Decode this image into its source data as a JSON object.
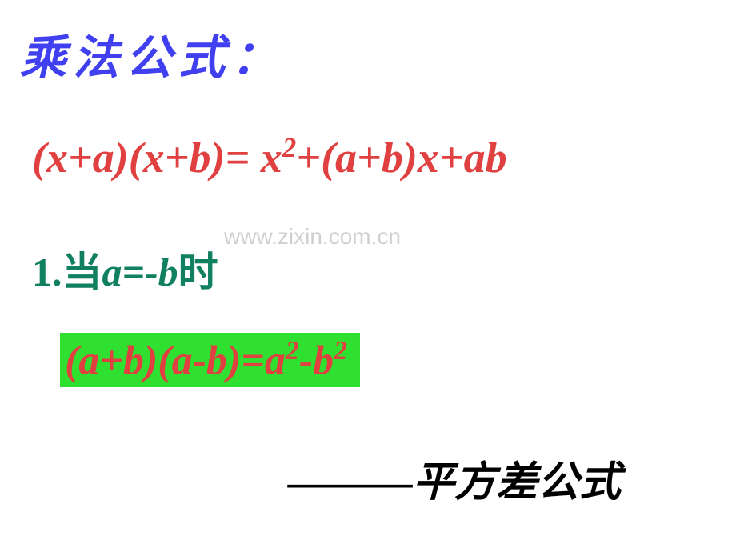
{
  "title": "乘法公式：",
  "formula1_html": "(x+a)(x+b)= x<sup>2</sup>+(a+b)x+ab",
  "condition_prefix": "1.当",
  "condition_expr": "a=-b",
  "condition_suffix": "时",
  "formula2_html": "(a+b)(a-b)=a<sup>2</sup>-b<sup>2</sup>",
  "label": "———平方差公式",
  "watermark": "www.zixin.com.cn",
  "colors": {
    "title_color": "#4040f0",
    "formula_color": "#e04040",
    "condition_color": "#108060",
    "highlight_bg": "#30e030",
    "label_color": "#000000",
    "watermark_color": "#d0d0d0",
    "background": "#ffffff"
  },
  "fontsizes": {
    "title": 58,
    "formula1": 54,
    "condition": 50,
    "formula2": 52,
    "label": 52,
    "watermark": 28
  }
}
